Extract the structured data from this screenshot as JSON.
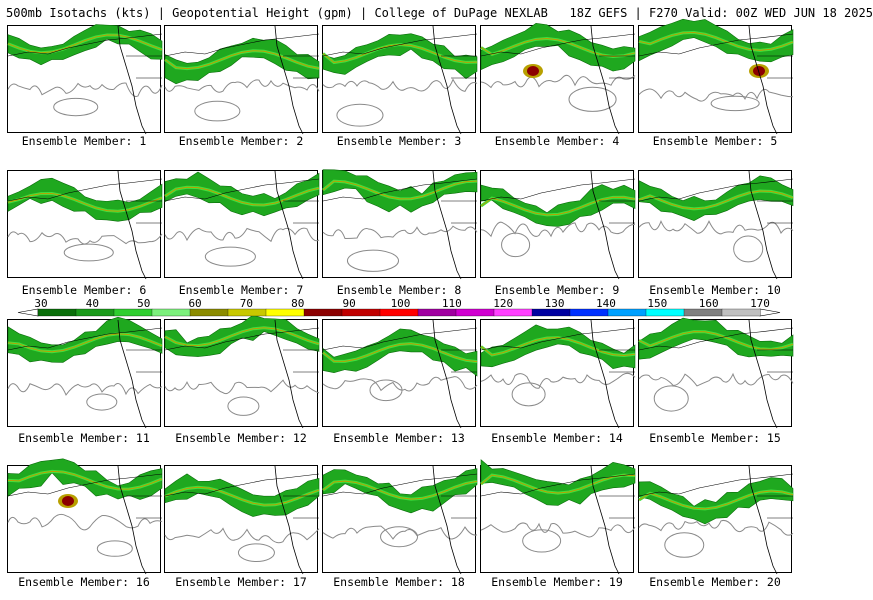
{
  "header": {
    "title": "500mb Isotachs (kts) | Geopotential Height (gpm) | College of DuPage NEXLAB   18Z GEFS | F270 Valid: 00Z WED JUN 18 2025"
  },
  "colorbar": {
    "labels": [
      "30",
      "40",
      "50",
      "60",
      "70",
      "80",
      "90",
      "100",
      "110",
      "120",
      "130",
      "140",
      "150",
      "160",
      "170"
    ],
    "colors": [
      "#0a6e0a",
      "#1a9a1a",
      "#2fce2f",
      "#7cf07c",
      "#8b8b00",
      "#c8c800",
      "#ffff00",
      "#8b0000",
      "#c00000",
      "#ff0000",
      "#a000a0",
      "#d000d0",
      "#ff40ff",
      "#0000a0",
      "#0030ff",
      "#00a0ff",
      "#00ffff",
      "#808080",
      "#c0c0c0"
    ]
  },
  "members": [
    {
      "label": "Ensemble Member: 1"
    },
    {
      "label": "Ensemble Member: 2"
    },
    {
      "label": "Ensemble Member: 3"
    },
    {
      "label": "Ensemble Member: 4"
    },
    {
      "label": "Ensemble Member: 5"
    },
    {
      "label": "Ensemble Member: 6"
    },
    {
      "label": "Ensemble Member: 7"
    },
    {
      "label": "Ensemble Member: 8"
    },
    {
      "label": "Ensemble Member: 9"
    },
    {
      "label": "Ensemble Member: 10"
    },
    {
      "label": "Ensemble Member: 11"
    },
    {
      "label": "Ensemble Member: 12"
    },
    {
      "label": "Ensemble Member: 13"
    },
    {
      "label": "Ensemble Member: 14"
    },
    {
      "label": "Ensemble Member: 15"
    },
    {
      "label": "Ensemble Member: 16"
    },
    {
      "label": "Ensemble Member: 17"
    },
    {
      "label": "Ensemble Member: 18"
    },
    {
      "label": "Ensemble Member: 19"
    },
    {
      "label": "Ensemble Member: 20"
    }
  ]
}
